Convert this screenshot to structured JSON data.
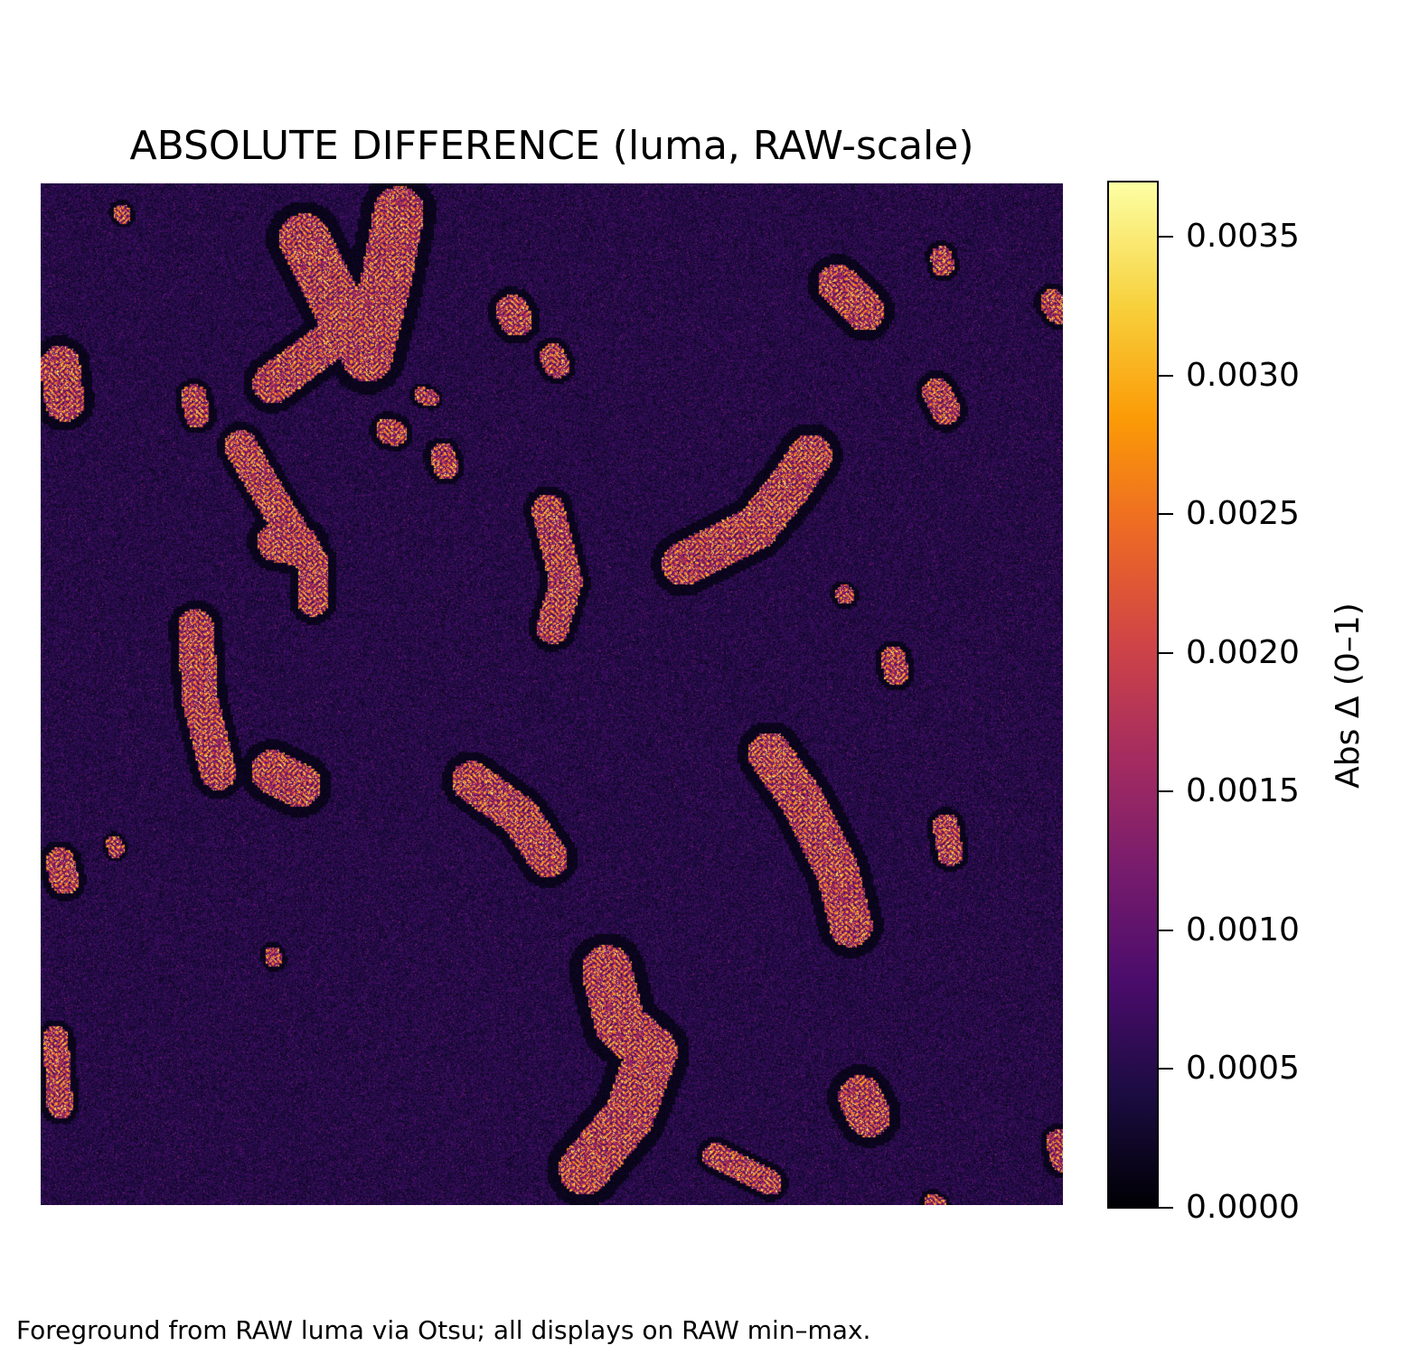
{
  "chart_data": {
    "type": "heatmap",
    "title": "ABSOLUTE DIFFERENCE (luma, RAW-scale)",
    "colormap": "inferno",
    "colorbar": {
      "label": "Abs Δ (0–1)",
      "range": [
        0.0,
        0.0037
      ],
      "ticks": [
        0.0,
        0.0005,
        0.001,
        0.0015,
        0.002,
        0.0025,
        0.003,
        0.0035
      ],
      "tick_labels": [
        "0.0000",
        "0.0005",
        "0.0010",
        "0.0015",
        "0.0020",
        "0.0025",
        "0.0030",
        "0.0035"
      ]
    },
    "axes_visible": false,
    "grid": false,
    "background_value": 0.0006
  },
  "footnote": "Foreground from RAW luma via Otsu; all displays on RAW min–max."
}
